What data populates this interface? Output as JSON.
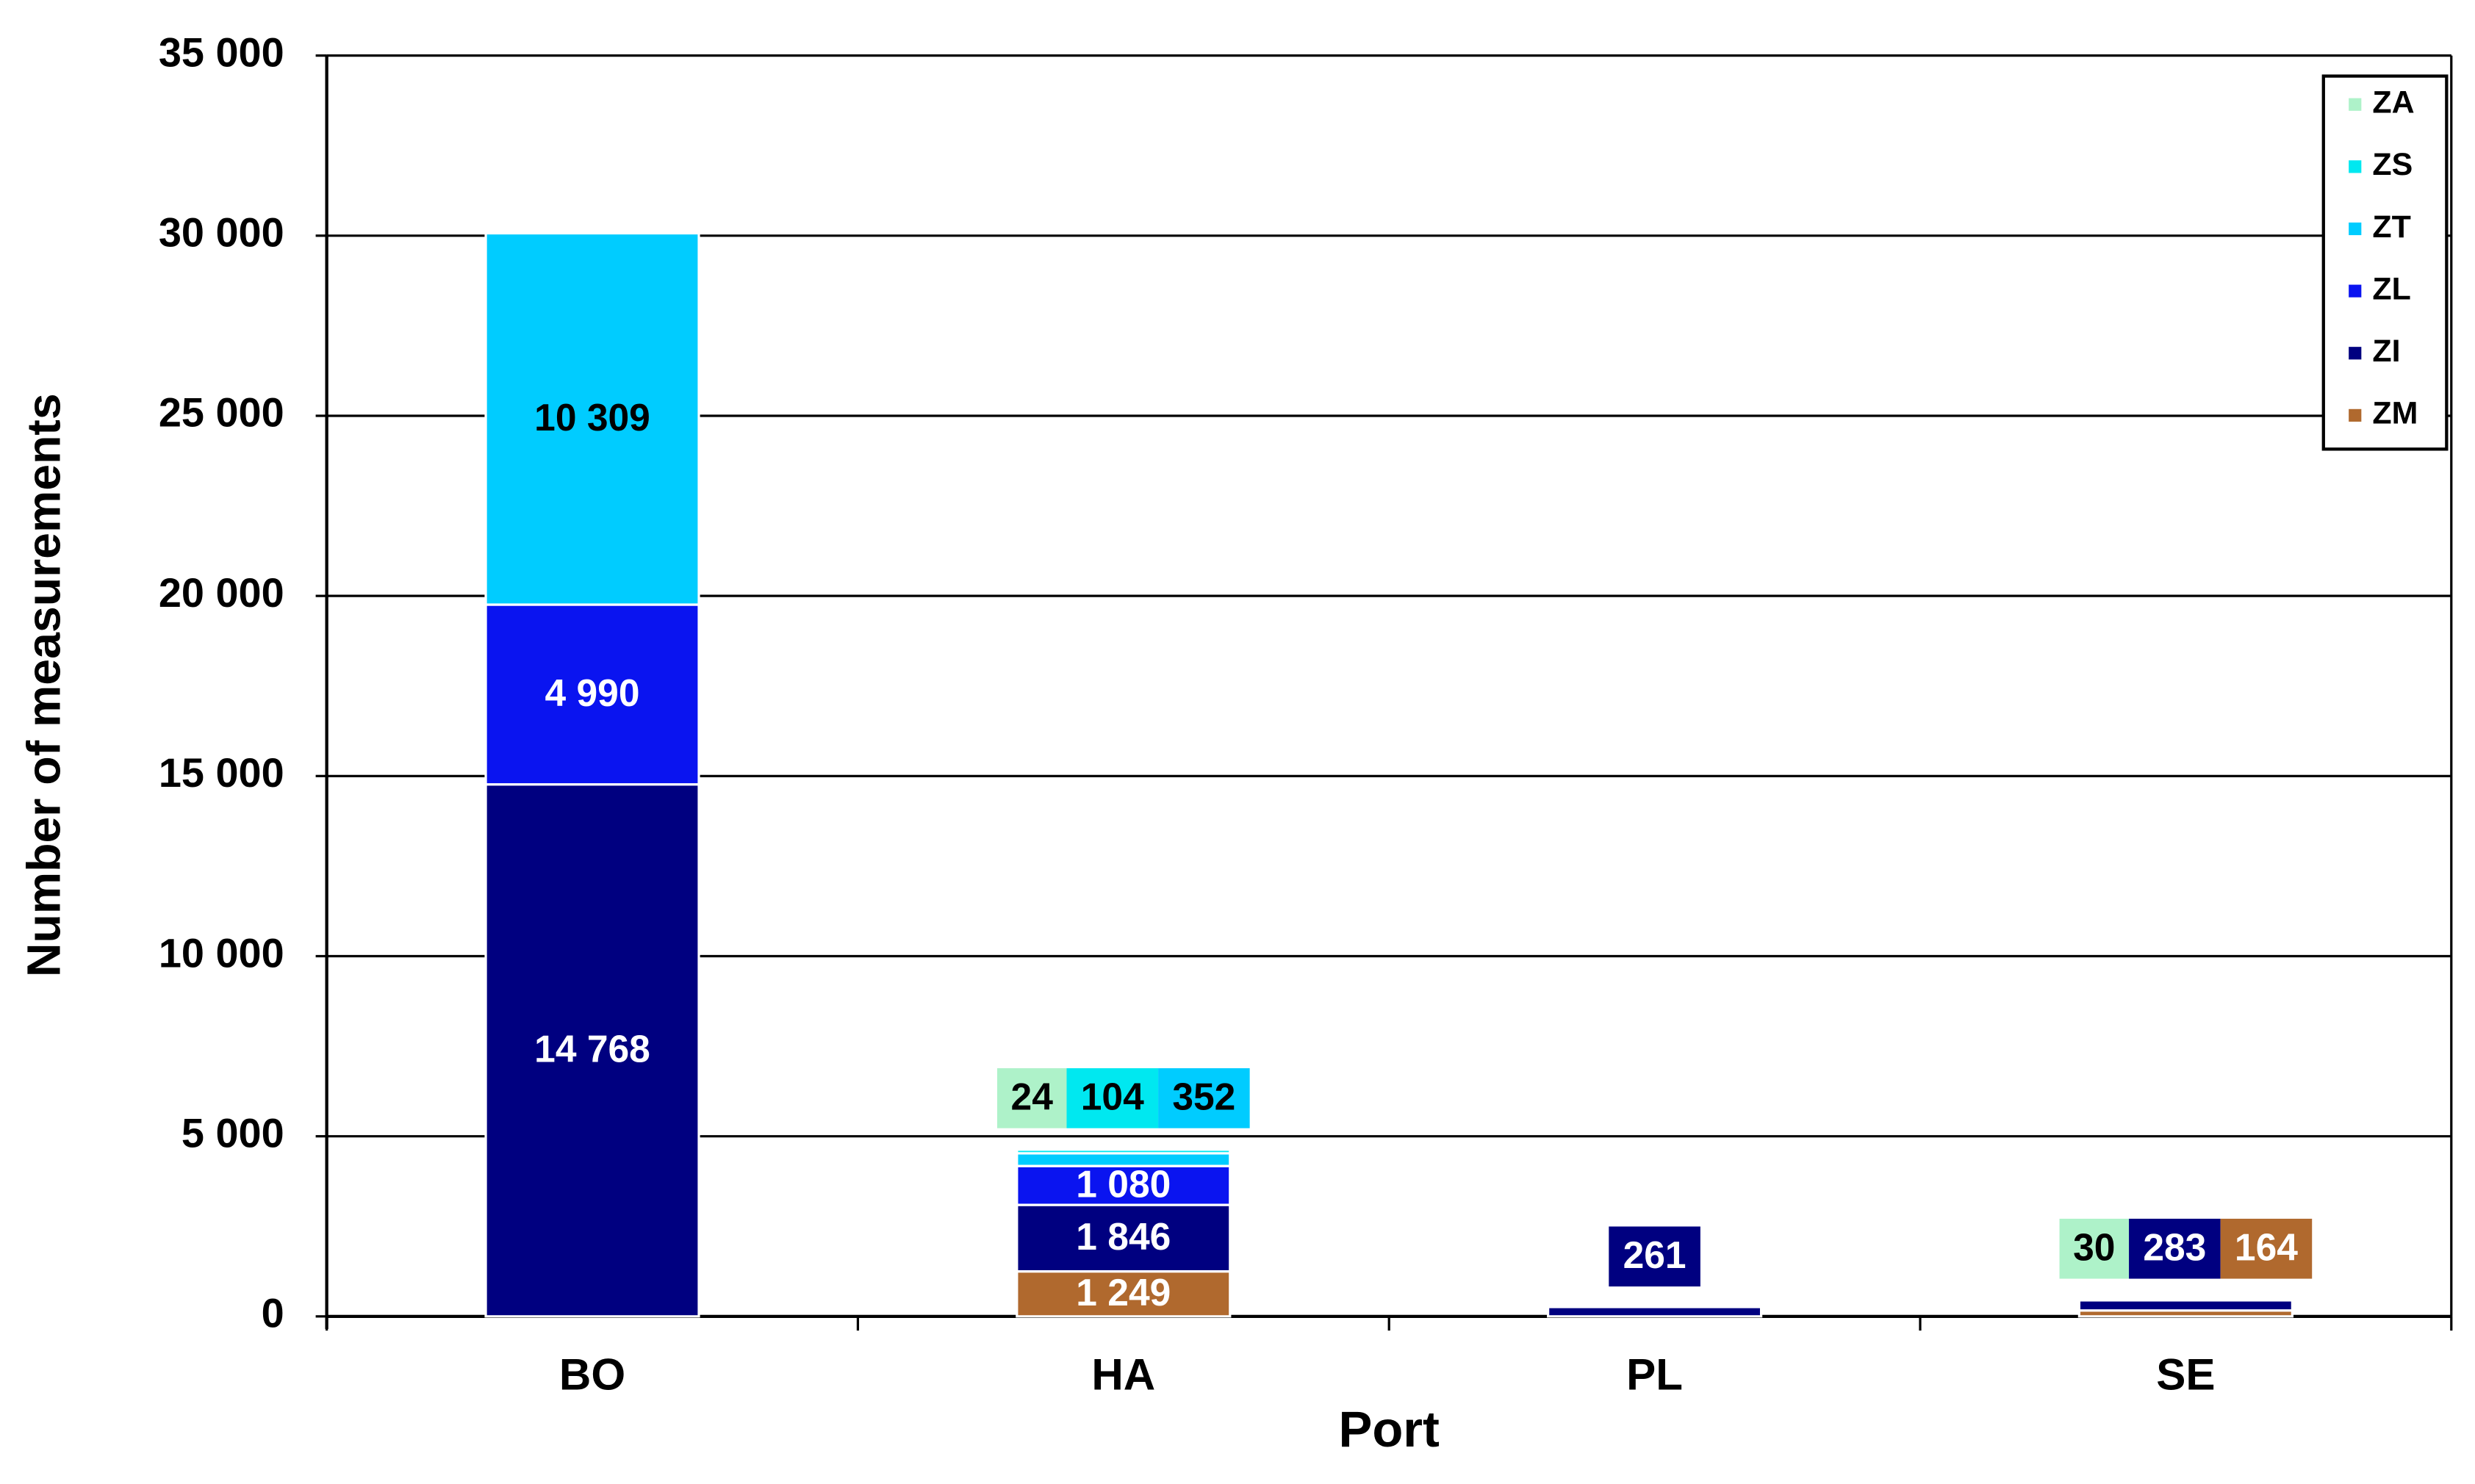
{
  "chart_data": {
    "type": "stacked_bar",
    "x_label": "Port",
    "y_label": "Number of measurements",
    "categories": [
      "BO",
      "HA",
      "PL",
      "SE"
    ],
    "ylim": [
      0,
      35000
    ],
    "yticks": [
      0,
      {
        "value": 5000,
        "label": "5 000"
      },
      {
        "value": 10000,
        "label": "10 000"
      },
      {
        "value": 15000,
        "label": "15 000"
      },
      {
        "value": 20000,
        "label": "20 000"
      },
      {
        "value": 25000,
        "label": "25 000"
      },
      {
        "value": 30000,
        "label": "30 000"
      },
      {
        "value": 35000,
        "label": "35 000"
      }
    ],
    "grid": true,
    "legend": "upper right",
    "series": [
      {
        "name": "ZA",
        "color": "#aef2c9",
        "values": [
          null,
          24,
          null,
          30
        ],
        "value_labels": [
          null,
          "24",
          null,
          "30"
        ]
      },
      {
        "name": "ZS",
        "color": "#00e8f0",
        "values": [
          null,
          104,
          null,
          null
        ],
        "value_labels": [
          null,
          "104",
          null,
          null
        ]
      },
      {
        "name": "ZT",
        "color": "#00ccff",
        "values": [
          10309,
          352,
          null,
          null
        ],
        "value_labels": [
          "10 309",
          "352",
          null,
          null
        ]
      },
      {
        "name": "ZL",
        "color": "#0a14f0",
        "values": [
          4990,
          1080,
          null,
          null
        ],
        "value_labels": [
          "4 990",
          "1 080",
          null,
          null
        ]
      },
      {
        "name": "ZI",
        "color": "#000080",
        "values": [
          14768,
          1846,
          261,
          283
        ],
        "value_labels": [
          "14 768",
          "1 846",
          "261",
          "283"
        ]
      },
      {
        "name": "ZM",
        "color": "#b0692e",
        "values": [
          null,
          1249,
          null,
          164
        ],
        "value_labels": [
          null,
          "1 249",
          null,
          "164"
        ]
      }
    ]
  }
}
